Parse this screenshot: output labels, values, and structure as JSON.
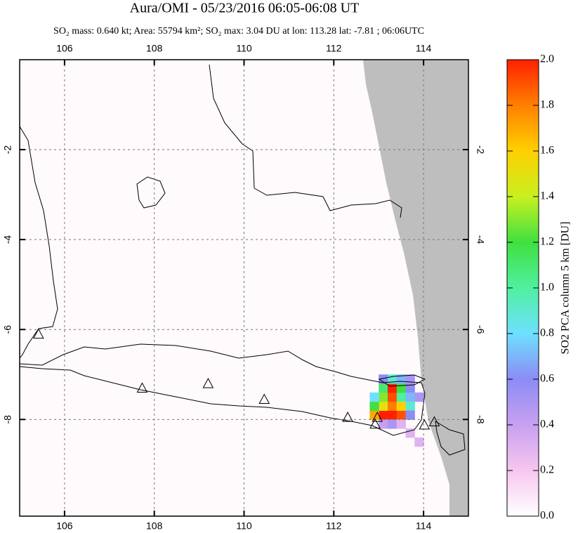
{
  "chart_data": {
    "type": "map",
    "title": "Aura/OMI - 05/23/2016 06:05-06:08 UT",
    "subtitle": "SO₂ mass: 0.640 kt; Area: 55794 km²; SO₂ max: 3.04 DU at lon: 113.28 lat: -7.81 ; 06:06UTC",
    "xlim": [
      105,
      115
    ],
    "ylim": [
      -10.15,
      0
    ],
    "xticks": [
      106,
      108,
      110,
      112,
      114
    ],
    "yticks": [
      -8,
      -6,
      -4,
      -2
    ],
    "grid": true,
    "colormap": [
      "#ffffff",
      "#f7c6f0",
      "#c8a0f0",
      "#8c8cf5",
      "#6ee0ff",
      "#50f0a0",
      "#40e040",
      "#c8f020",
      "#ffd000",
      "#ff8000",
      "#ff2000"
    ],
    "colorbar": {
      "label": "SO2 PCA column 5 km [DU]",
      "lim": [
        0,
        2
      ],
      "ticks": [
        {
          "value": 0,
          "label": "0.0"
        },
        {
          "value": 0.2,
          "label": "0.2"
        },
        {
          "value": 0.4,
          "label": "0.4"
        },
        {
          "value": 0.6,
          "label": "0.6"
        },
        {
          "value": 0.8,
          "label": "0.8"
        },
        {
          "value": 1,
          "label": "1.0"
        },
        {
          "value": 1.2,
          "label": "1.2"
        },
        {
          "value": 1.4,
          "label": "1.4"
        },
        {
          "value": 1.6,
          "label": "1.6"
        },
        {
          "value": 1.8,
          "label": "1.8"
        },
        {
          "value": 2,
          "label": "2.0"
        }
      ]
    },
    "so2": {
      "lon": [
        113.1,
        113.3,
        113.5,
        112.9,
        113.1,
        113.3,
        113.5,
        112.9,
        113.1,
        113.3,
        113.5,
        112.9,
        113.1,
        113.3,
        113.5,
        113.7,
        113.1,
        113.3,
        113.5,
        113.7,
        113.9,
        113.7,
        113.7,
        113.7,
        113.1,
        113.3,
        113.5,
        113.7,
        113.9
      ],
      "lat": [
        -7.9,
        -7.9,
        -7.9,
        -7.9,
        -7.7,
        -7.7,
        -7.7,
        -7.7,
        -7.5,
        -7.5,
        -7.5,
        -7.5,
        -7.3,
        -7.3,
        -7.3,
        -7.3,
        -7.1,
        -7.1,
        -7.1,
        -7.1,
        -7.5,
        -7.5,
        -7.7,
        -7.9,
        -8.1,
        -8.1,
        -8.1,
        -8.3,
        -8.5
      ],
      "values": [
        2.0,
        2.0,
        1.9,
        1.7,
        1.5,
        1.8,
        1.6,
        1.2,
        1.3,
        1.9,
        1.0,
        0.8,
        1.1,
        2.0,
        1.2,
        0.6,
        0.6,
        0.9,
        0.7,
        0.5,
        0.5,
        0.7,
        0.9,
        0.6,
        0.4,
        0.5,
        0.3,
        0.3,
        0.3
      ]
    },
    "volcanoes": {
      "lon": [
        105.42,
        107.73,
        109.2,
        110.45,
        112.31,
        112.92,
        112.97,
        114.02,
        114.24
      ],
      "lat": [
        -6.1,
        -7.3,
        -7.2,
        -7.55,
        -7.95,
        -8.1,
        -7.95,
        -8.12,
        -8.05
      ]
    }
  }
}
